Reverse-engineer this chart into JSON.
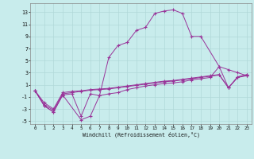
{
  "bg_color": "#c8ecec",
  "grid_color": "#b0d8d8",
  "line_color": "#993399",
  "xlabel": "Windchill (Refroidissement éolien,°C)",
  "xlim": [
    -0.5,
    23.5
  ],
  "ylim": [
    -5.5,
    14.5
  ],
  "xticks": [
    0,
    1,
    2,
    3,
    4,
    5,
    6,
    7,
    8,
    9,
    10,
    11,
    12,
    13,
    14,
    15,
    16,
    17,
    18,
    19,
    20,
    21,
    22,
    23
  ],
  "yticks": [
    -5,
    -3,
    -1,
    1,
    3,
    5,
    7,
    9,
    11,
    13
  ],
  "lines": [
    {
      "x": [
        0,
        1,
        2,
        3,
        5,
        6,
        7,
        8,
        9,
        10,
        11,
        12,
        13,
        14,
        15,
        16,
        17,
        18,
        20,
        21,
        22,
        23
      ],
      "y": [
        0,
        -2.5,
        -3.5,
        -0.7,
        -4.8,
        -4.2,
        -0.8,
        5.5,
        7.5,
        8.0,
        10.0,
        10.5,
        12.8,
        13.2,
        13.4,
        12.8,
        9.0,
        9.0,
        4.0,
        3.5,
        3.0,
        2.5
      ]
    },
    {
      "x": [
        0,
        1,
        2,
        3,
        4,
        5,
        6,
        7,
        8,
        9,
        10,
        11,
        12,
        13,
        14,
        15,
        16,
        17,
        18,
        19,
        20,
        21,
        22,
        23
      ],
      "y": [
        0,
        -2.5,
        -3.5,
        -0.7,
        -0.5,
        -4.2,
        -0.5,
        -0.8,
        -0.5,
        -0.3,
        0.2,
        0.5,
        0.8,
        1.0,
        1.2,
        1.3,
        1.5,
        1.8,
        2.0,
        2.2,
        4.0,
        0.5,
        2.2,
        2.5
      ]
    },
    {
      "x": [
        0,
        1,
        2,
        3,
        4,
        5,
        6,
        7,
        8,
        9,
        10,
        11,
        12,
        13,
        14,
        15,
        16,
        17,
        18,
        19,
        20,
        21,
        22,
        23
      ],
      "y": [
        0,
        -2.3,
        -3.2,
        -0.5,
        -0.3,
        -0.1,
        0.1,
        0.2,
        0.3,
        0.5,
        0.7,
        0.9,
        1.1,
        1.3,
        1.5,
        1.6,
        1.8,
        2.0,
        2.2,
        2.4,
        2.6,
        0.5,
        2.3,
        2.6
      ]
    },
    {
      "x": [
        0,
        1,
        2,
        3,
        4,
        5,
        6,
        7,
        8,
        9,
        10,
        11,
        12,
        13,
        14,
        15,
        16,
        17,
        18,
        19,
        20,
        21,
        22,
        23
      ],
      "y": [
        0,
        -2.0,
        -3.0,
        -0.3,
        -0.1,
        0.0,
        0.2,
        0.3,
        0.4,
        0.6,
        0.8,
        1.0,
        1.2,
        1.4,
        1.6,
        1.7,
        1.9,
        2.1,
        2.3,
        2.5,
        2.7,
        0.5,
        2.3,
        2.7
      ]
    }
  ]
}
